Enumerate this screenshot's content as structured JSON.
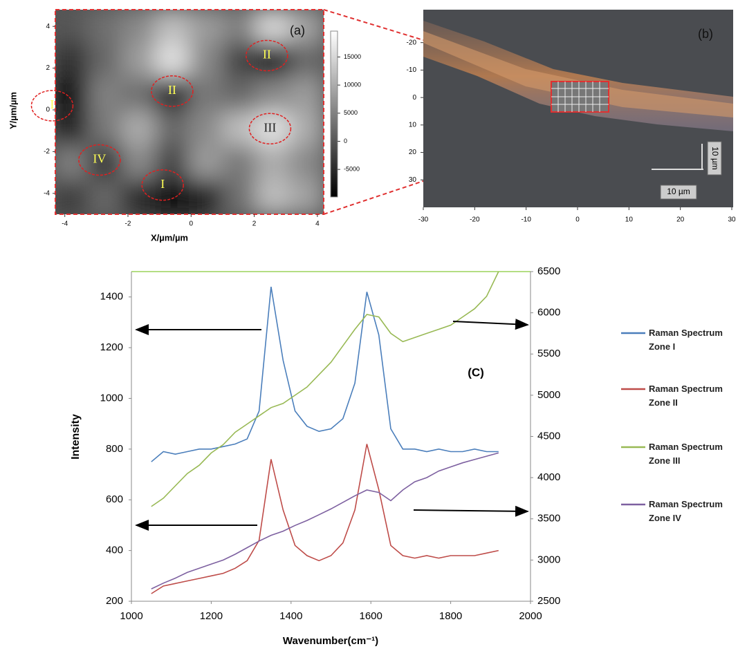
{
  "chart_data": [
    {
      "type": "heatmap",
      "panel_label": "(a)",
      "xlabel": "X/µm/µm",
      "ylabel": "Y/µm/µm",
      "xlim": [
        -4.3,
        4.2
      ],
      "ylim": [
        -5,
        4.8
      ],
      "xticks": [
        -4,
        -2,
        0,
        2,
        4
      ],
      "yticks": [
        -4,
        -2,
        0,
        2,
        4
      ],
      "values": [
        [
          0,
          3000,
          6000,
          12000,
          8000,
          5000,
          15000,
          9000
        ],
        [
          -4000,
          2000,
          8000,
          16000,
          6000,
          -2000,
          -7000,
          2000
        ],
        [
          -8000,
          5000,
          3000,
          -6000,
          4000,
          2000,
          6000,
          8000
        ],
        [
          -6000,
          4000,
          10000,
          2000,
          6000,
          12000,
          16000,
          10000
        ],
        [
          5000,
          -4000,
          6000,
          -2000,
          8000,
          4000,
          10000,
          6000
        ],
        [
          -3000,
          2000,
          -5000,
          -8000,
          -6000,
          3000,
          12000,
          9000
        ]
      ],
      "colorbar": {
        "lim": [
          -9900,
          19600
        ],
        "ticks": [
          -5000,
          0,
          5000,
          10000,
          15000
        ]
      },
      "zones": [
        {
          "label": "I",
          "x": -4.4,
          "y": 0.2,
          "color": "#ffff55"
        },
        {
          "label": "II",
          "x": -0.6,
          "y": 0.9,
          "color": "#ffff55"
        },
        {
          "label": "II",
          "x": 2.4,
          "y": 2.6,
          "color": "#ffff55"
        },
        {
          "label": "III",
          "x": 2.5,
          "y": -0.9,
          "color": "#222222"
        },
        {
          "label": "IV",
          "x": -2.9,
          "y": -2.4,
          "color": "#ffff55"
        },
        {
          "label": "I",
          "x": -0.9,
          "y": -3.6,
          "color": "#ffff55"
        }
      ]
    },
    {
      "type": "image",
      "panel_label": "(b)",
      "xlim": [
        -30,
        30
      ],
      "ylim": [
        -32,
        40
      ],
      "y_inverted": true,
      "xticks": [
        -30,
        -20,
        -10,
        0,
        10,
        20,
        30
      ],
      "yticks": [
        -20,
        -10,
        0,
        10,
        20,
        30
      ],
      "scale_bar_labels": [
        "10 µm",
        "10 µm"
      ]
    },
    {
      "type": "line",
      "annotation": "(C)",
      "xlabel": "Wavenumber(cm⁻¹)",
      "ylabel": "Intensity",
      "xlim": [
        1000,
        2000
      ],
      "xticks": [
        1000,
        1200,
        1400,
        1600,
        1800,
        2000
      ],
      "ylim": [
        200,
        1500
      ],
      "yticks": [
        200,
        400,
        600,
        800,
        1000,
        1200,
        1400
      ],
      "y2lim": [
        2500,
        6500
      ],
      "y2ticks": [
        2500,
        3000,
        3500,
        4000,
        4500,
        5000,
        5500,
        6000,
        6500
      ],
      "x": [
        1050,
        1080,
        1110,
        1140,
        1170,
        1200,
        1230,
        1260,
        1290,
        1320,
        1350,
        1380,
        1410,
        1440,
        1470,
        1500,
        1530,
        1560,
        1590,
        1620,
        1650,
        1680,
        1710,
        1740,
        1770,
        1800,
        1830,
        1860,
        1890,
        1920
      ],
      "series": [
        {
          "name": "Raman Spectrum Zone I",
          "color": "#4a7ebb",
          "values": [
            750,
            790,
            780,
            790,
            800,
            800,
            810,
            820,
            840,
            950,
            1440,
            1150,
            950,
            890,
            870,
            880,
            920,
            1060,
            1420,
            1250,
            880,
            800,
            800,
            790,
            800,
            790,
            790,
            800,
            790,
            790
          ]
        },
        {
          "name": "Raman Spectrum Zone II",
          "color": "#be4b48",
          "values": [
            230,
            260,
            270,
            280,
            290,
            300,
            310,
            330,
            360,
            440,
            760,
            560,
            420,
            380,
            360,
            380,
            430,
            560,
            820,
            640,
            420,
            380,
            370,
            380,
            370,
            380,
            380,
            380,
            390,
            400
          ]
        },
        {
          "name": "Raman Spectrum Zone III",
          "color": "#98b954",
          "axis": "y2",
          "values": [
            3650,
            3750,
            3900,
            4050,
            4150,
            4300,
            4400,
            4550,
            4650,
            4750,
            4850,
            4900,
            5000,
            5100,
            5250,
            5400,
            5600,
            5800,
            5980,
            5950,
            5750,
            5650,
            5700,
            5750,
            5800,
            5850,
            5950,
            6050,
            6200,
            6500
          ]
        },
        {
          "name": "Raman Spectrum Zone IV",
          "color": "#7d60a0",
          "axis": "y2",
          "values": [
            2650,
            2720,
            2780,
            2850,
            2900,
            2950,
            3000,
            3070,
            3150,
            3230,
            3300,
            3350,
            3420,
            3480,
            3550,
            3620,
            3700,
            3780,
            3850,
            3820,
            3720,
            3850,
            3950,
            4000,
            4080,
            4130,
            4180,
            4220,
            4260,
            4300
          ]
        }
      ]
    }
  ]
}
